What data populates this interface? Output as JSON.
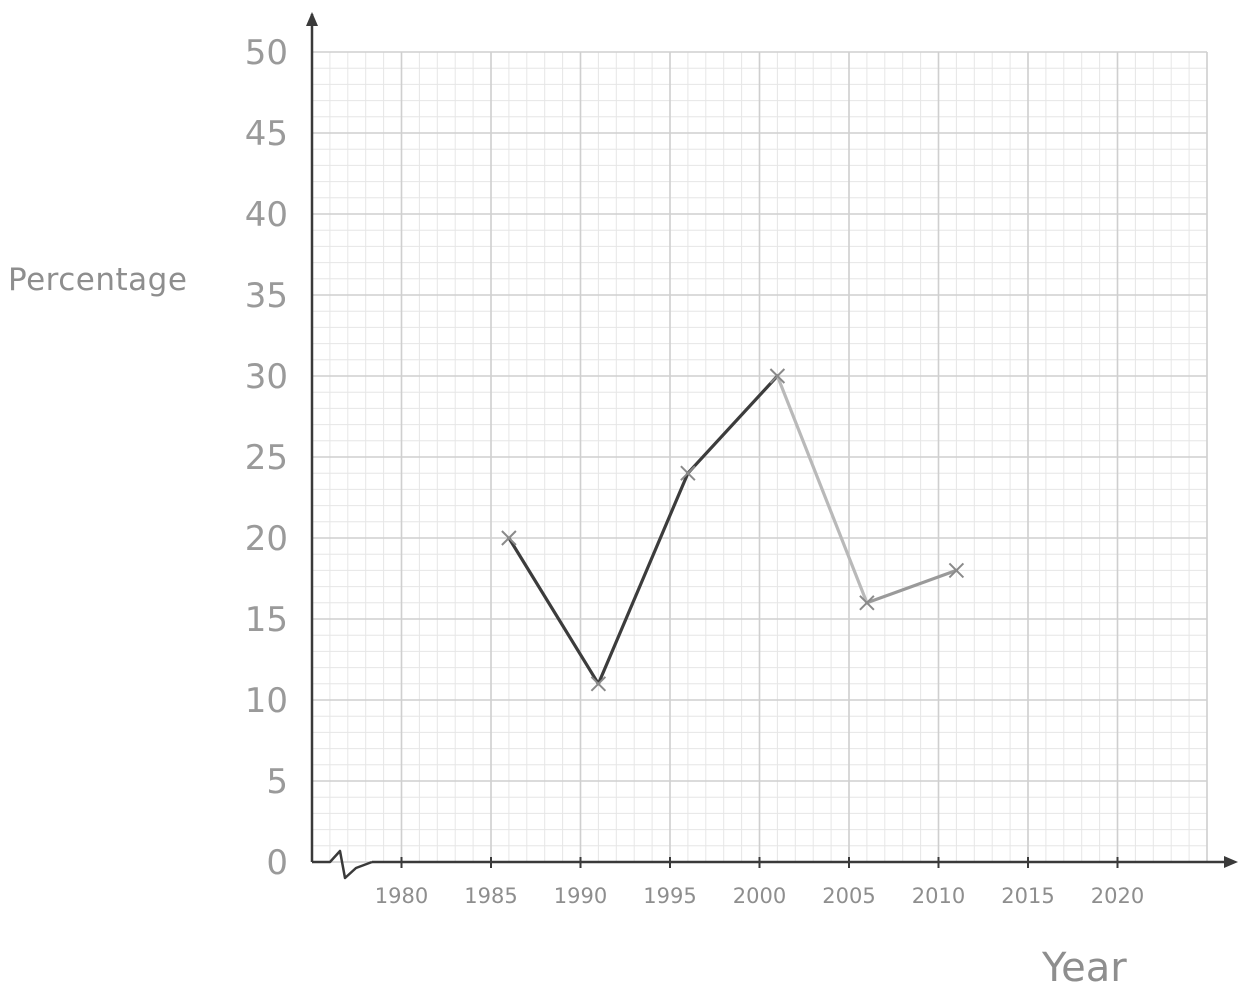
{
  "chart_data": {
    "type": "line",
    "xlabel": "Year",
    "ylabel": "Percentage",
    "xlim": [
      1975,
      2025
    ],
    "ylim": [
      0,
      50
    ],
    "x_ticks": [
      "1980",
      "1985",
      "1990",
      "1995",
      "2000",
      "2005",
      "2010",
      "2015",
      "2020"
    ],
    "y_ticks": [
      "0",
      "5",
      "10",
      "15",
      "20",
      "25",
      "30",
      "35",
      "40",
      "45",
      "50"
    ],
    "grid": true,
    "axis_break": true,
    "segment_colors": [
      "#3c3c3c",
      "#3c3c3c",
      "#3c3c3c",
      "#b9b9b9",
      "#9a9a9a"
    ],
    "points": [
      {
        "x": 1986,
        "y": 20
      },
      {
        "x": 1991,
        "y": 11
      },
      {
        "x": 1996,
        "y": 24
      },
      {
        "x": 2001,
        "y": 30
      },
      {
        "x": 2006,
        "y": 16
      },
      {
        "x": 2011,
        "y": 18
      }
    ]
  }
}
